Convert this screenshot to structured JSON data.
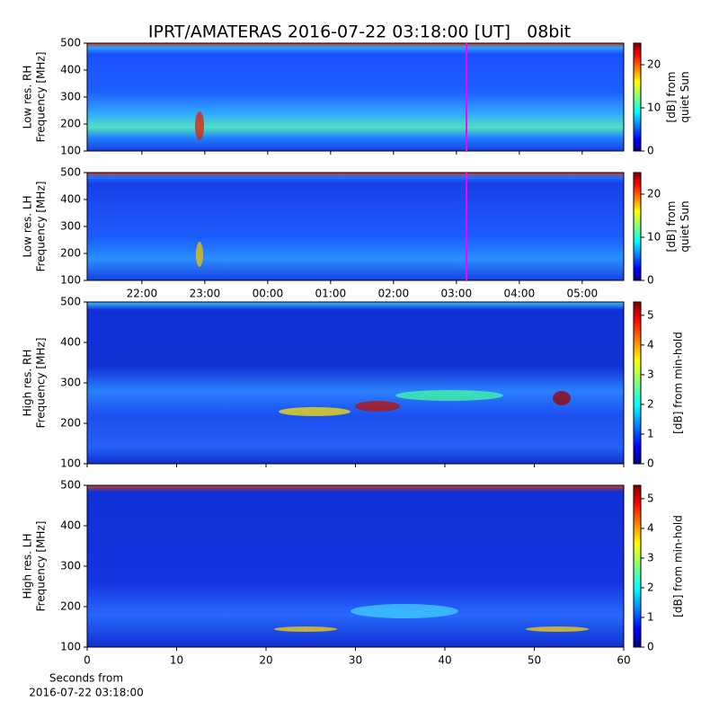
{
  "title": "IPRT/AMATERAS 2016-07-22 03:18:00 [UT]   08bit",
  "chart_data": [
    {
      "type": "heatmap",
      "ylabel": [
        "Low res. RH",
        "Frequency [MHz]"
      ],
      "ylim": [
        100,
        500
      ],
      "yticks": [
        100,
        200,
        300,
        400,
        500
      ],
      "xlim": [
        21.13,
        29.66
      ],
      "vline": {
        "value": 27.16,
        "color": "#ff00ff"
      },
      "colorbar": {
        "label": [
          "[dB] from",
          "quiet Sun"
        ],
        "lim": [
          0,
          25
        ],
        "ticks": [
          0,
          10,
          20
        ]
      }
    },
    {
      "type": "heatmap",
      "ylabel": [
        "Low res. LH",
        "Frequency [MHz]"
      ],
      "ylim": [
        100,
        500
      ],
      "yticks": [
        100,
        200,
        300,
        400,
        500
      ],
      "xlim": [
        21.13,
        29.66
      ],
      "xticks": [
        {
          "value": 22,
          "label": "22:00"
        },
        {
          "value": 23,
          "label": "23:00"
        },
        {
          "value": 24,
          "label": "00:00"
        },
        {
          "value": 25,
          "label": "01:00"
        },
        {
          "value": 26,
          "label": "02:00"
        },
        {
          "value": 27,
          "label": "03:00"
        },
        {
          "value": 28,
          "label": "04:00"
        },
        {
          "value": 29,
          "label": "05:00"
        }
      ],
      "vline": {
        "value": 27.16,
        "color": "#ff00ff"
      },
      "colorbar": {
        "label": [
          "[dB] from",
          "quiet Sun"
        ],
        "lim": [
          0,
          25
        ],
        "ticks": [
          0,
          10,
          20
        ]
      }
    },
    {
      "type": "heatmap",
      "ylabel": [
        "High res. RH",
        "Frequency [MHz]"
      ],
      "ylim": [
        100,
        500
      ],
      "yticks": [
        100,
        200,
        300,
        400,
        500
      ],
      "xlim": [
        0,
        60
      ],
      "colorbar": {
        "label": [
          "[dB] from min-hold"
        ],
        "lim": [
          0,
          5.45
        ],
        "ticks": [
          0,
          1,
          2,
          3,
          4,
          5
        ]
      }
    },
    {
      "type": "heatmap",
      "ylabel": [
        "High res. LH",
        "Frequency [MHz]"
      ],
      "ylim": [
        100,
        500
      ],
      "yticks": [
        100,
        200,
        300,
        400,
        500
      ],
      "xlim": [
        0,
        60
      ],
      "xticks": [
        0,
        10,
        20,
        30,
        40,
        50,
        60
      ],
      "xlabel": [
        "Seconds from",
        "2016-07-22 03:18:00"
      ],
      "colorbar": {
        "label": [
          "[dB] from min-hold"
        ],
        "lim": [
          0,
          5.45
        ],
        "ticks": [
          0,
          1,
          2,
          3,
          4,
          5
        ]
      }
    }
  ]
}
